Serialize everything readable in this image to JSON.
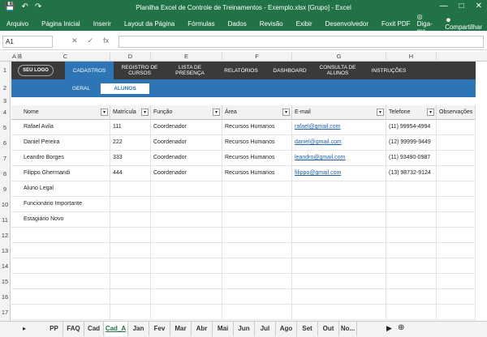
{
  "window": {
    "title": "Planilha Excel de Controle de Treinamentos - Exemplo.xlsx  [Grupo] - Excel"
  },
  "ribbon": {
    "tabs": [
      "Arquivo",
      "Página Inicial",
      "Inserir",
      "Layout da Página",
      "Fórmulas",
      "Dados",
      "Revisão",
      "Exibir",
      "Desenvolvedor",
      "Foxit PDF"
    ],
    "tell_me": "Diga-me...",
    "share": "Compartilhar"
  },
  "formula_bar": {
    "name_box": "A1",
    "fx": "fx",
    "value": ""
  },
  "columns": [
    "A",
    "B",
    "C",
    "D",
    "E",
    "F",
    "G",
    "H"
  ],
  "rows": [
    "1",
    "2",
    "3",
    "4",
    "5",
    "6",
    "7",
    "8",
    "9",
    "10",
    "11",
    "12",
    "13",
    "14",
    "15",
    "16",
    "17"
  ],
  "nav": {
    "logo": "SEU LOGO",
    "items": [
      "CADASTROS",
      "REGISTRO DE CURSOS",
      "LISTA DE PRESENÇA",
      "RELATÓRIOS",
      "DASHBOARD",
      "CONSULTA DE ALUNOS",
      "INSTRUÇÕES"
    ],
    "sub_items": [
      "GERAL",
      "ALUNOS"
    ]
  },
  "table": {
    "headers": [
      "Nome",
      "Matrícula",
      "Função",
      "Área",
      "E-mail",
      "Telefone",
      "Observações"
    ],
    "rows": [
      [
        "Rafael Avila",
        "111",
        "Coordenador",
        "Recursos Humanos",
        "rafael@gmail.com",
        "(11) 99954-4994",
        ""
      ],
      [
        "Daniel Pereira",
        "222",
        "Coordenador",
        "Recursos Humanos",
        "daniel@gmail.com",
        "(12) 99999-9449",
        ""
      ],
      [
        "Leandro Borges",
        "333",
        "Coordenador",
        "Recursos Humanos",
        "leandro@gmail.com",
        "(11) 93490-0987",
        ""
      ],
      [
        "Filippo Ghermandi",
        "444",
        "Coordenador",
        "Recursos Humanos",
        "filippo@gmail.com",
        "(13) 98732-9124",
        ""
      ],
      [
        "Aluno Legal",
        "",
        "",
        "",
        "",
        "",
        ""
      ],
      [
        "Funcionário Importante",
        "",
        "",
        "",
        "",
        "",
        ""
      ],
      [
        "Estagiário Novo",
        "",
        "",
        "",
        "",
        "",
        ""
      ]
    ]
  },
  "sheets": [
    "PP",
    "FAQ",
    "Cad",
    "Cad_A",
    "Jan",
    "Fev",
    "Mar",
    "Abr",
    "Mai",
    "Jun",
    "Jul",
    "Ago",
    "Set",
    "Out",
    "No..."
  ],
  "active_sheet": "Cad_A"
}
